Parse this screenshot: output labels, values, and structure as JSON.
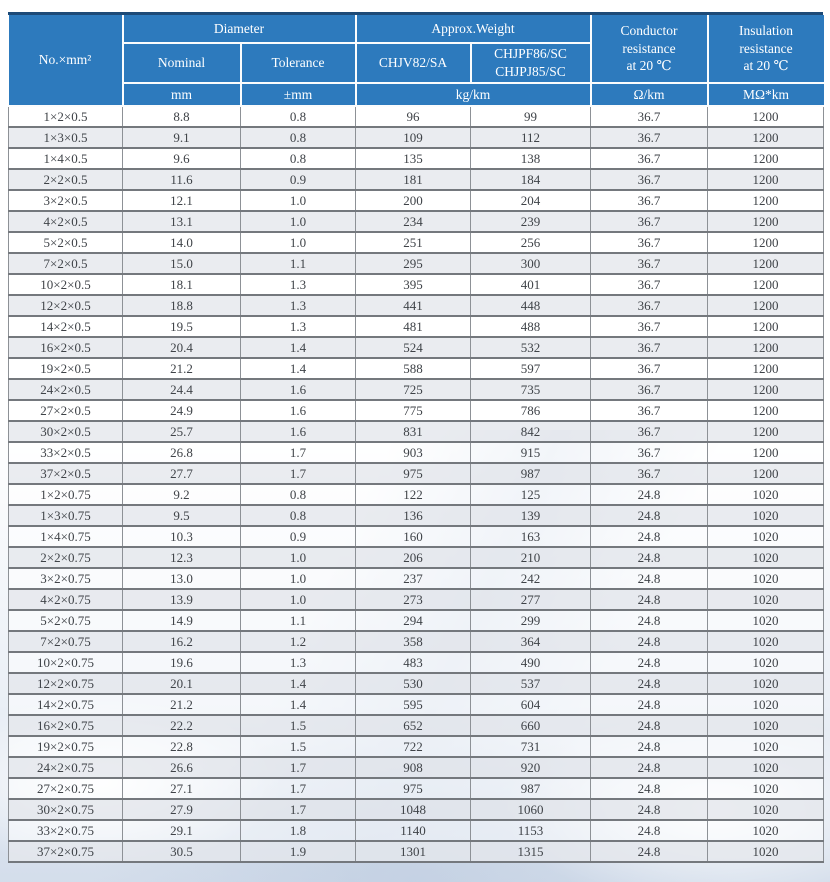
{
  "colors": {
    "header_bg": "#2d7abd",
    "header_divider": "#ffffff",
    "frame_navy": "#1d4a77",
    "grid_gray": "#8d9196",
    "row_alt": "#e6e8ec",
    "body_text": "#3f4348"
  },
  "table": {
    "header": {
      "no_mm2": "No.×mm²",
      "diameter": "Diameter",
      "nominal": "Nominal",
      "tolerance": "Tolerance",
      "approx_weight": "Approx.Weight",
      "weight_type_1": "CHJV82/SA",
      "weight_type_2": "CHJPF86/SC\nCHJPJ85/SC",
      "conductor_resistance": "Conductor\nresistance\nat 20 ℃",
      "insulation_resistance": "Insulation\nresistance\nat 20 ℃",
      "units": {
        "nominal": "mm",
        "tolerance": "±mm",
        "weight": "kg/km",
        "conductor": "Ω/km",
        "insulation": "MΩ*km"
      }
    },
    "rows": [
      [
        "1×2×0.5",
        "8.8",
        "0.8",
        "96",
        "99",
        "36.7",
        "1200"
      ],
      [
        "1×3×0.5",
        "9.1",
        "0.8",
        "109",
        "112",
        "36.7",
        "1200"
      ],
      [
        "1×4×0.5",
        "9.6",
        "0.8",
        "135",
        "138",
        "36.7",
        "1200"
      ],
      [
        "2×2×0.5",
        "11.6",
        "0.9",
        "181",
        "184",
        "36.7",
        "1200"
      ],
      [
        "3×2×0.5",
        "12.1",
        "1.0",
        "200",
        "204",
        "36.7",
        "1200"
      ],
      [
        "4×2×0.5",
        "13.1",
        "1.0",
        "234",
        "239",
        "36.7",
        "1200"
      ],
      [
        "5×2×0.5",
        "14.0",
        "1.0",
        "251",
        "256",
        "36.7",
        "1200"
      ],
      [
        "7×2×0.5",
        "15.0",
        "1.1",
        "295",
        "300",
        "36.7",
        "1200"
      ],
      [
        "10×2×0.5",
        "18.1",
        "1.3",
        "395",
        "401",
        "36.7",
        "1200"
      ],
      [
        "12×2×0.5",
        "18.8",
        "1.3",
        "441",
        "448",
        "36.7",
        "1200"
      ],
      [
        "14×2×0.5",
        "19.5",
        "1.3",
        "481",
        "488",
        "36.7",
        "1200"
      ],
      [
        "16×2×0.5",
        "20.4",
        "1.4",
        "524",
        "532",
        "36.7",
        "1200"
      ],
      [
        "19×2×0.5",
        "21.2",
        "1.4",
        "588",
        "597",
        "36.7",
        "1200"
      ],
      [
        "24×2×0.5",
        "24.4",
        "1.6",
        "725",
        "735",
        "36.7",
        "1200"
      ],
      [
        "27×2×0.5",
        "24.9",
        "1.6",
        "775",
        "786",
        "36.7",
        "1200"
      ],
      [
        "30×2×0.5",
        "25.7",
        "1.6",
        "831",
        "842",
        "36.7",
        "1200"
      ],
      [
        "33×2×0.5",
        "26.8",
        "1.7",
        "903",
        "915",
        "36.7",
        "1200"
      ],
      [
        "37×2×0.5",
        "27.7",
        "1.7",
        "975",
        "987",
        "36.7",
        "1200"
      ],
      [
        "1×2×0.75",
        "9.2",
        "0.8",
        "122",
        "125",
        "24.8",
        "1020"
      ],
      [
        "1×3×0.75",
        "9.5",
        "0.8",
        "136",
        "139",
        "24.8",
        "1020"
      ],
      [
        "1×4×0.75",
        "10.3",
        "0.9",
        "160",
        "163",
        "24.8",
        "1020"
      ],
      [
        "2×2×0.75",
        "12.3",
        "1.0",
        "206",
        "210",
        "24.8",
        "1020"
      ],
      [
        "3×2×0.75",
        "13.0",
        "1.0",
        "237",
        "242",
        "24.8",
        "1020"
      ],
      [
        "4×2×0.75",
        "13.9",
        "1.0",
        "273",
        "277",
        "24.8",
        "1020"
      ],
      [
        "5×2×0.75",
        "14.9",
        "1.1",
        "294",
        "299",
        "24.8",
        "1020"
      ],
      [
        "7×2×0.75",
        "16.2",
        "1.2",
        "358",
        "364",
        "24.8",
        "1020"
      ],
      [
        "10×2×0.75",
        "19.6",
        "1.3",
        "483",
        "490",
        "24.8",
        "1020"
      ],
      [
        "12×2×0.75",
        "20.1",
        "1.4",
        "530",
        "537",
        "24.8",
        "1020"
      ],
      [
        "14×2×0.75",
        "21.2",
        "1.4",
        "595",
        "604",
        "24.8",
        "1020"
      ],
      [
        "16×2×0.75",
        "22.2",
        "1.5",
        "652",
        "660",
        "24.8",
        "1020"
      ],
      [
        "19×2×0.75",
        "22.8",
        "1.5",
        "722",
        "731",
        "24.8",
        "1020"
      ],
      [
        "24×2×0.75",
        "26.6",
        "1.7",
        "908",
        "920",
        "24.8",
        "1020"
      ],
      [
        "27×2×0.75",
        "27.1",
        "1.7",
        "975",
        "987",
        "24.8",
        "1020"
      ],
      [
        "30×2×0.75",
        "27.9",
        "1.7",
        "1048",
        "1060",
        "24.8",
        "1020"
      ],
      [
        "33×2×0.75",
        "29.1",
        "1.8",
        "1140",
        "1153",
        "24.8",
        "1020"
      ],
      [
        "37×2×0.75",
        "30.5",
        "1.9",
        "1301",
        "1315",
        "24.8",
        "1020"
      ]
    ]
  }
}
